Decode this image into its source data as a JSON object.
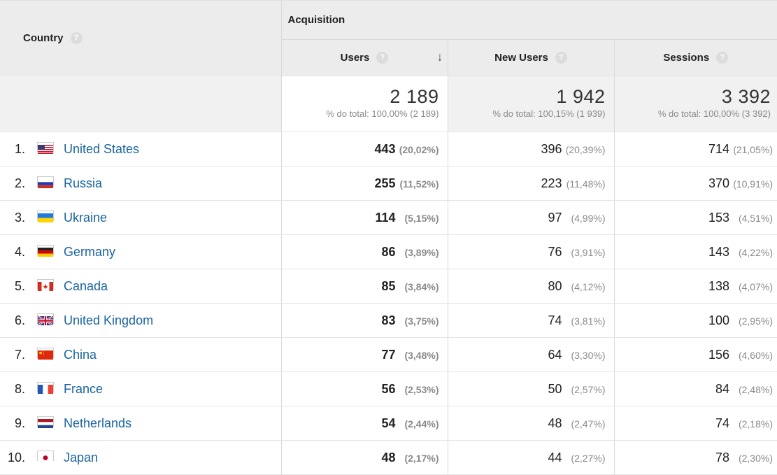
{
  "header": {
    "country_label": "Country",
    "group_label": "Acquisition",
    "columns": [
      "Users",
      "New Users",
      "Sessions"
    ],
    "help_glyph": "?",
    "sort_glyph": "↓"
  },
  "totals": [
    {
      "value": "2 189",
      "sub": "% do total: 100,00% (2 189)"
    },
    {
      "value": "1 942",
      "sub": "% do total: 100,15% (1 939)"
    },
    {
      "value": "3 392",
      "sub": "% do total: 100,00% (3 392)"
    }
  ],
  "rows": [
    {
      "num": "1.",
      "flag": "flag-us-icon",
      "country": "United States",
      "users": "443",
      "users_pct": "(20,02%)",
      "new": "396",
      "new_pct": "(20,39%)",
      "sessions": "714",
      "sessions_pct": "(21,05%)"
    },
    {
      "num": "2.",
      "flag": "flag-ru-icon",
      "country": "Russia",
      "users": "255",
      "users_pct": "(11,52%)",
      "new": "223",
      "new_pct": "(11,48%)",
      "sessions": "370",
      "sessions_pct": "(10,91%)"
    },
    {
      "num": "3.",
      "flag": "flag-ua-icon",
      "country": "Ukraine",
      "users": "114",
      "users_pct": "(5,15%)",
      "new": "97",
      "new_pct": "(4,99%)",
      "sessions": "153",
      "sessions_pct": "(4,51%)"
    },
    {
      "num": "4.",
      "flag": "flag-de-icon",
      "country": "Germany",
      "users": "86",
      "users_pct": "(3,89%)",
      "new": "76",
      "new_pct": "(3,91%)",
      "sessions": "143",
      "sessions_pct": "(4,22%)"
    },
    {
      "num": "5.",
      "flag": "flag-ca-icon",
      "country": "Canada",
      "users": "85",
      "users_pct": "(3,84%)",
      "new": "80",
      "new_pct": "(4,12%)",
      "sessions": "138",
      "sessions_pct": "(4,07%)"
    },
    {
      "num": "6.",
      "flag": "flag-gb-icon",
      "country": "United Kingdom",
      "users": "83",
      "users_pct": "(3,75%)",
      "new": "74",
      "new_pct": "(3,81%)",
      "sessions": "100",
      "sessions_pct": "(2,95%)"
    },
    {
      "num": "7.",
      "flag": "flag-cn-icon",
      "country": "China",
      "users": "77",
      "users_pct": "(3,48%)",
      "new": "64",
      "new_pct": "(3,30%)",
      "sessions": "156",
      "sessions_pct": "(4,60%)"
    },
    {
      "num": "8.",
      "flag": "flag-fr-icon",
      "country": "France",
      "users": "56",
      "users_pct": "(2,53%)",
      "new": "50",
      "new_pct": "(2,57%)",
      "sessions": "84",
      "sessions_pct": "(2,48%)"
    },
    {
      "num": "9.",
      "flag": "flag-nl-icon",
      "country": "Netherlands",
      "users": "54",
      "users_pct": "(2,44%)",
      "new": "48",
      "new_pct": "(2,47%)",
      "sessions": "74",
      "sessions_pct": "(2,18%)"
    },
    {
      "num": "10.",
      "flag": "flag-jp-icon",
      "country": "Japan",
      "users": "48",
      "users_pct": "(2,17%)",
      "new": "44",
      "new_pct": "(2,27%)",
      "sessions": "78",
      "sessions_pct": "(2,30%)"
    }
  ],
  "colors": {
    "link": "#1a64a0",
    "header_bg": "#ececec",
    "muted": "#8a8a8a"
  }
}
